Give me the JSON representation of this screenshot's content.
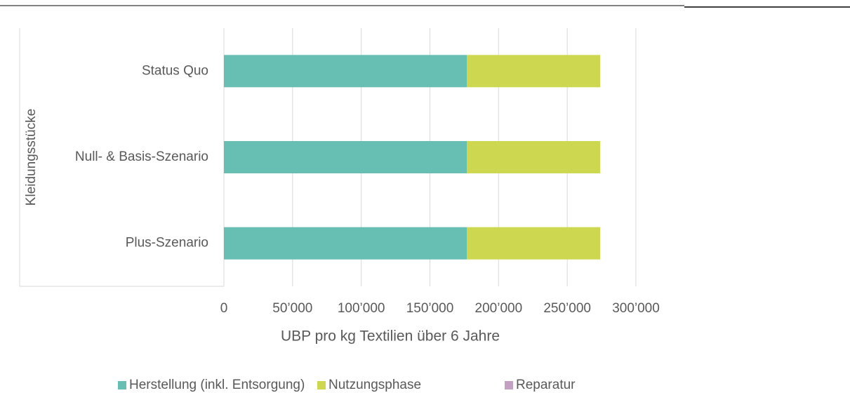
{
  "chart_data": {
    "type": "bar",
    "orientation": "horizontal",
    "stacked": true,
    "x_label": "UBP pro kg Textilien über 6 Jahre",
    "y_label": "Kleidungsstücke",
    "categories": [
      "Status Quo",
      "Null- & Basis-Szenario",
      "Plus-Szenario"
    ],
    "series": [
      {
        "name": "Herstellung (inkl. Entsorgung)",
        "color": "#66bfb2",
        "values": [
          177000,
          177000,
          177000
        ]
      },
      {
        "name": "Nutzungsphase",
        "color": "#cdd74f",
        "values": [
          97000,
          97000,
          97000
        ]
      },
      {
        "name": "Reparatur",
        "color": "#c39fc4",
        "values": [
          0,
          0,
          0
        ]
      }
    ],
    "xlim": [
      0,
      300000
    ],
    "xticks": [
      0,
      {
        "value": 50000,
        "label": "50’000"
      },
      {
        "value": 100000,
        "label": "100’000"
      },
      {
        "value": 150000,
        "label": "150’000"
      },
      {
        "value": 200000,
        "label": "200’000"
      },
      {
        "value": 250000,
        "label": "250’000"
      },
      {
        "value": 300000,
        "label": "300’000"
      }
    ],
    "grid": true,
    "legend": "bottom"
  }
}
